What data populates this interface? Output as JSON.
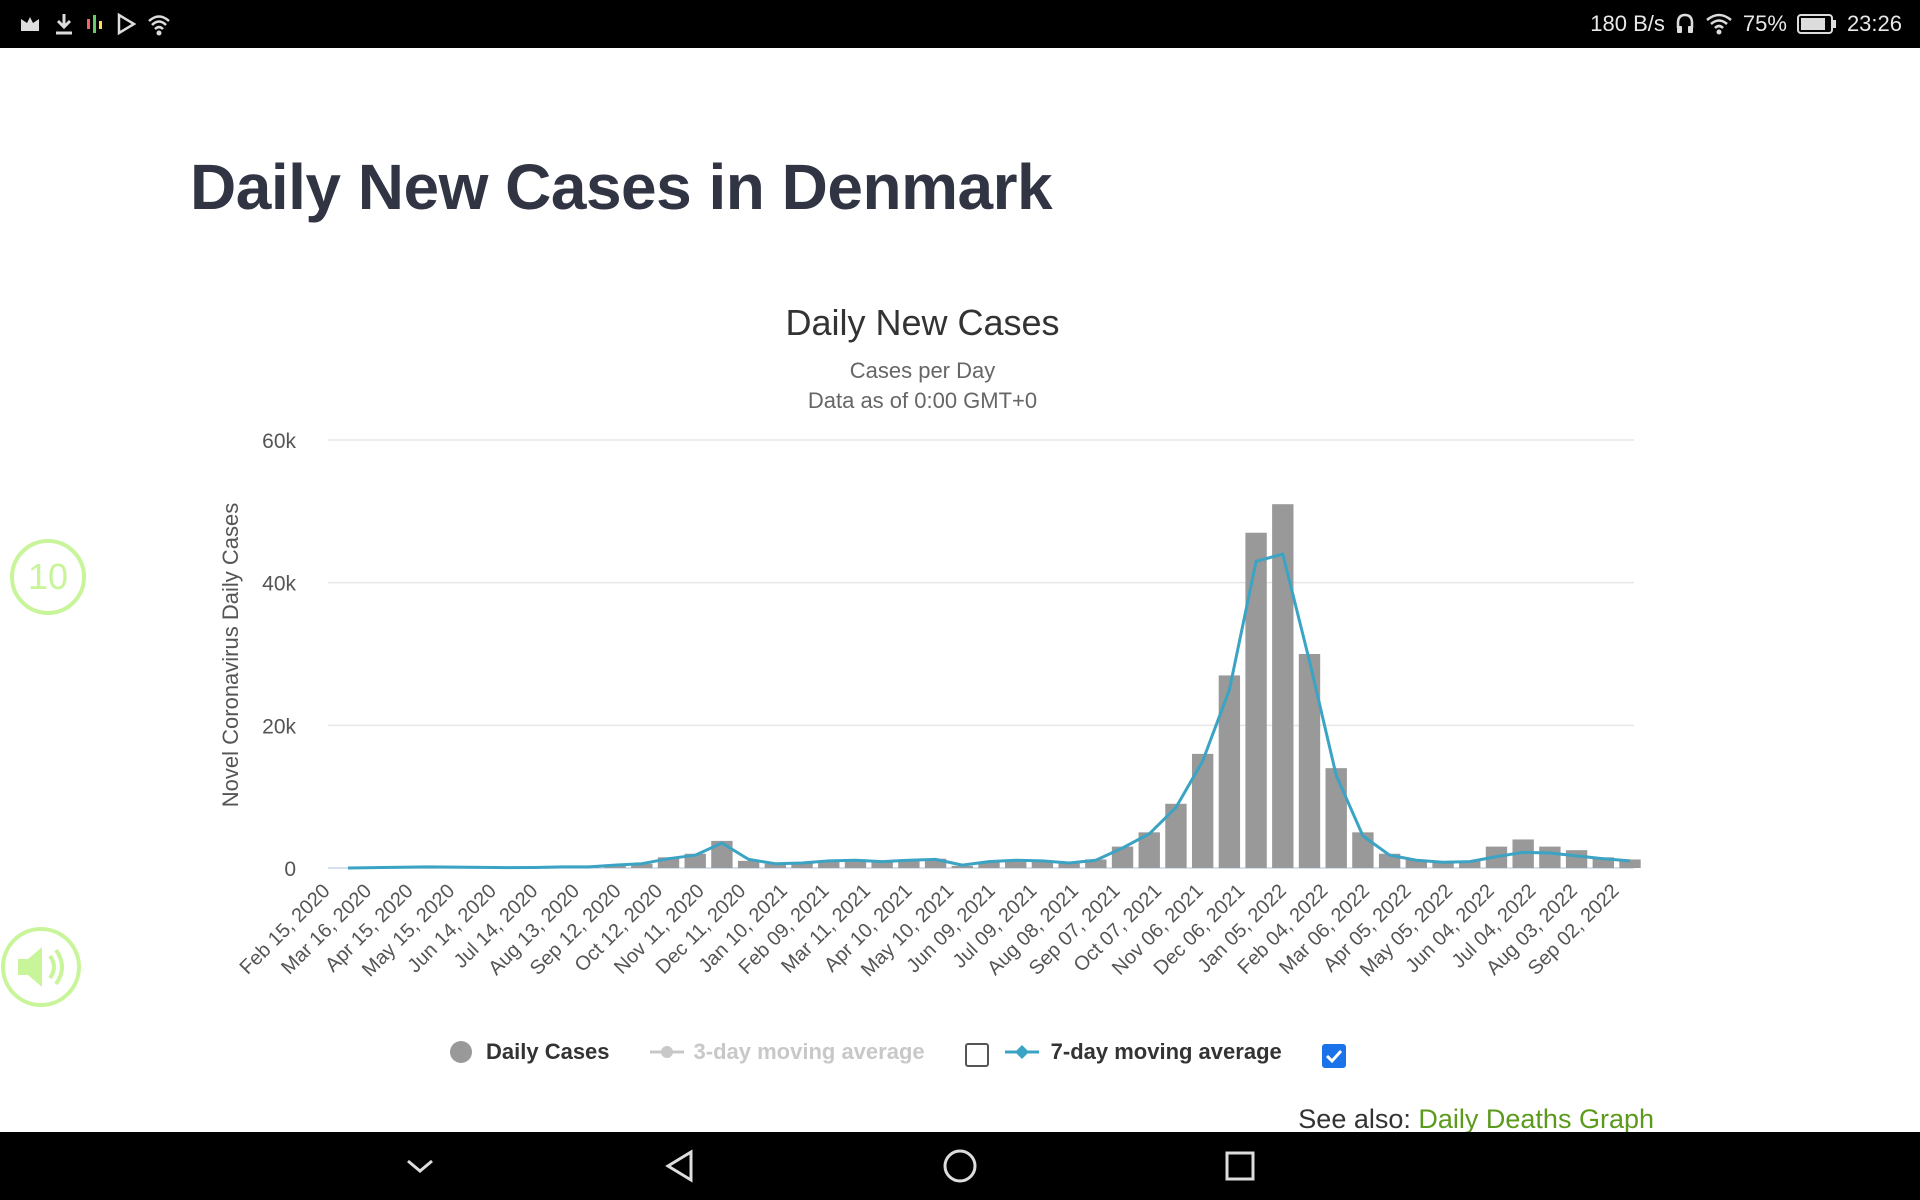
{
  "status_bar": {
    "net_speed": "180 B/s",
    "battery": "75%",
    "time": "23:26",
    "icons": [
      "alarm-icon",
      "download-icon",
      "app-icon",
      "play-store-icon",
      "wifi-hotspot-icon",
      "headset-icon",
      "wifi-icon",
      "battery-icon"
    ]
  },
  "page": {
    "title": "Daily New Cases in Denmark"
  },
  "chart": {
    "title": "Daily New Cases",
    "subtitle": "Cases per Day",
    "subtitle2": "Data as of 0:00 GMT+0"
  },
  "legend": {
    "daily": "Daily Cases",
    "avg3": "3-day moving average",
    "avg7": "7-day moving average",
    "avg3_checked": false,
    "avg7_checked": true
  },
  "see_also": {
    "label": "See also:",
    "link": "Daily Deaths Graph"
  },
  "overlay": {
    "replay_label": "10",
    "sound_icon": "speaker-icon"
  },
  "colors": {
    "bar": "#999999",
    "line7": "#3ba3c3",
    "line3": "#c8c8c8",
    "link": "#5b9a1b",
    "overlay": "#c8f59a"
  },
  "chart_data": {
    "type": "bar",
    "title": "Daily New Cases",
    "subtitle": "Cases per Day",
    "ylabel": "Novel Coronavirus Daily Cases",
    "xlabel": "",
    "ylim": [
      0,
      60000
    ],
    "y_ticks": [
      0,
      20000,
      40000,
      60000
    ],
    "y_tick_labels": [
      "0",
      "20k",
      "40k",
      "60k"
    ],
    "x_tick_labels": [
      "Feb 15, 2020",
      "Mar 16, 2020",
      "Apr 15, 2020",
      "May 15, 2020",
      "Jun 14, 2020",
      "Jul 14, 2020",
      "Aug 13, 2020",
      "Sep 12, 2020",
      "Oct 12, 2020",
      "Nov 11, 2020",
      "Dec 11, 2020",
      "Jan 10, 2021",
      "Feb 09, 2021",
      "Mar 11, 2021",
      "Apr 10, 2021",
      "May 10, 2021",
      "Jun 09, 2021",
      "Jul 09, 2021",
      "Aug 08, 2021",
      "Sep 07, 2021",
      "Oct 07, 2021",
      "Nov 06, 2021",
      "Dec 06, 2021",
      "Jan 05, 2022",
      "Feb 04, 2022",
      "Mar 06, 2022",
      "Apr 05, 2022",
      "May 05, 2022",
      "Jun 04, 2022",
      "Jul 04, 2022",
      "Aug 03, 2022",
      "Sep 02, 2022"
    ],
    "series": [
      {
        "name": "Daily Cases",
        "type": "bar",
        "values": [
          0,
          50,
          100,
          150,
          120,
          80,
          60,
          70,
          150,
          150,
          400,
          600,
          1500,
          2000,
          3800,
          1000,
          600,
          700,
          1000,
          1200,
          900,
          1200,
          1300,
          300,
          900,
          1200,
          1000,
          800,
          1200,
          3000,
          5000,
          9000,
          16000,
          27000,
          47000,
          51000,
          30000,
          14000,
          5000,
          2000,
          1200,
          900,
          1000,
          3000,
          4000,
          3000,
          2500,
          1500,
          1200
        ]
      },
      {
        "name": "7-day moving average",
        "type": "line",
        "values": [
          0,
          50,
          100,
          150,
          120,
          80,
          60,
          70,
          150,
          150,
          400,
          600,
          1300,
          1800,
          3500,
          1200,
          600,
          700,
          1000,
          1100,
          900,
          1100,
          1200,
          400,
          900,
          1100,
          1000,
          700,
          1100,
          2800,
          4800,
          8500,
          15000,
          25000,
          43000,
          44000,
          29000,
          13000,
          4500,
          1800,
          1100,
          800,
          900,
          1600,
          2200,
          2100,
          1700,
          1300,
          1000
        ]
      },
      {
        "name": "3-day moving average",
        "type": "line",
        "visible": false,
        "values": []
      }
    ]
  }
}
